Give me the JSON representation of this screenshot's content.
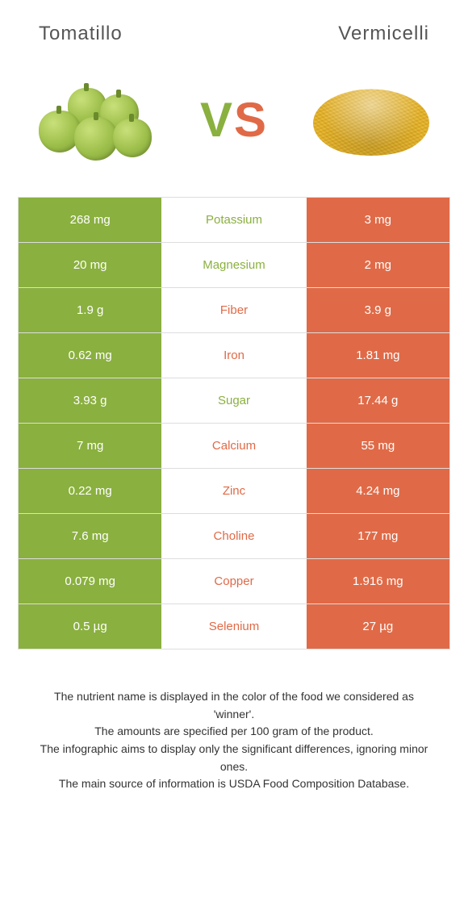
{
  "colors": {
    "left": "#8ab03f",
    "right": "#e06a47",
    "row_border": "#dddddd"
  },
  "foods": {
    "left": {
      "name": "Tomatillo"
    },
    "right": {
      "name": "Vermicelli"
    }
  },
  "vs": {
    "v": "V",
    "s": "S"
  },
  "rows": [
    {
      "nutrient": "Potassium",
      "winner": "left",
      "left": "268 mg",
      "right": "3 mg"
    },
    {
      "nutrient": "Magnesium",
      "winner": "left",
      "left": "20 mg",
      "right": "2 mg"
    },
    {
      "nutrient": "Fiber",
      "winner": "right",
      "left": "1.9 g",
      "right": "3.9 g"
    },
    {
      "nutrient": "Iron",
      "winner": "right",
      "left": "0.62 mg",
      "right": "1.81 mg"
    },
    {
      "nutrient": "Sugar",
      "winner": "left",
      "left": "3.93 g",
      "right": "17.44 g"
    },
    {
      "nutrient": "Calcium",
      "winner": "right",
      "left": "7 mg",
      "right": "55 mg"
    },
    {
      "nutrient": "Zinc",
      "winner": "right",
      "left": "0.22 mg",
      "right": "4.24 mg"
    },
    {
      "nutrient": "Choline",
      "winner": "right",
      "left": "7.6 mg",
      "right": "177 mg"
    },
    {
      "nutrient": "Copper",
      "winner": "right",
      "left": "0.079 mg",
      "right": "1.916 mg"
    },
    {
      "nutrient": "Selenium",
      "winner": "right",
      "left": "0.5 µg",
      "right": "27 µg"
    }
  ],
  "footnotes": [
    "The nutrient name is displayed in the color of the food we considered as 'winner'.",
    "The amounts are specified per 100 gram of the product.",
    "The infographic aims to display only the significant differences, ignoring minor ones.",
    "The main source of information is USDA Food Composition Database."
  ]
}
